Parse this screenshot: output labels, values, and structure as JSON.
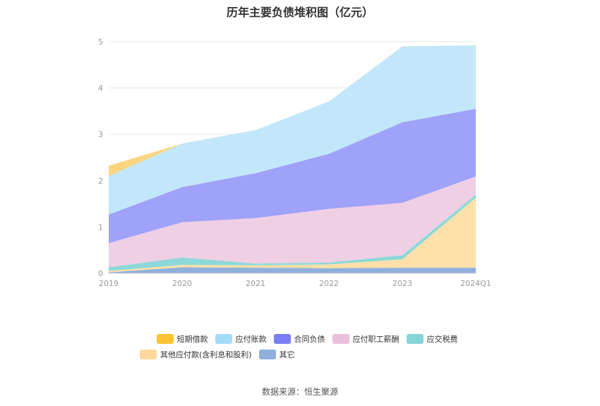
{
  "chart_data": {
    "type": "area",
    "stacked": true,
    "title": "历年主要负债堆积图（亿元）",
    "categories": [
      "2019",
      "2020",
      "2021",
      "2022",
      "2023",
      "2024Q1"
    ],
    "ylim": [
      0,
      5
    ],
    "yticks": [
      "0",
      "1",
      "2",
      "3",
      "4",
      "5"
    ],
    "grid": true,
    "legend_position": "bottom",
    "series": [
      {
        "name": "其它",
        "color": "#8fb0dc",
        "values": [
          0.02,
          0.13,
          0.12,
          0.11,
          0.12,
          0.12
        ]
      },
      {
        "name": "其他应付款(含利息和股利)",
        "color": "#ffe0a8",
        "values": [
          0.03,
          0.05,
          0.05,
          0.08,
          0.18,
          1.51
        ]
      },
      {
        "name": "应交税费",
        "color": "#8dd8d8",
        "values": [
          0.08,
          0.16,
          0.04,
          0.04,
          0.09,
          0.07
        ]
      },
      {
        "name": "应付职工薪酬",
        "color": "#efcfe4",
        "values": [
          0.52,
          0.76,
          0.98,
          1.16,
          1.13,
          0.39
        ]
      },
      {
        "name": "合同负债",
        "color": "#a0a2f9",
        "values": [
          0.62,
          0.76,
          0.97,
          1.19,
          1.74,
          1.46
        ]
      },
      {
        "name": "应付账款",
        "color": "#c3e7fa",
        "values": [
          0.83,
          0.94,
          0.93,
          1.13,
          1.64,
          1.37
        ]
      },
      {
        "name": "短期借款",
        "color": "#fdd57e",
        "values": [
          0.22,
          0.0,
          0.0,
          0.0,
          0.0,
          0.0
        ]
      }
    ]
  },
  "legend": {
    "row1": [
      {
        "label": "短期借款",
        "color": "#fcc233"
      },
      {
        "label": "应付账款",
        "color": "#a3dcf9"
      },
      {
        "label": "合同负债",
        "color": "#7b7ef5"
      },
      {
        "label": "应付职工薪酬",
        "color": "#ebbedb"
      },
      {
        "label": "应交税费",
        "color": "#86d5d8"
      }
    ],
    "row2": [
      {
        "label": "其他应付款(含利息和股利)",
        "color": "#fed89c"
      },
      {
        "label": "其它",
        "color": "#8fb0dc"
      }
    ]
  },
  "source": "数据来源：恒生聚源"
}
